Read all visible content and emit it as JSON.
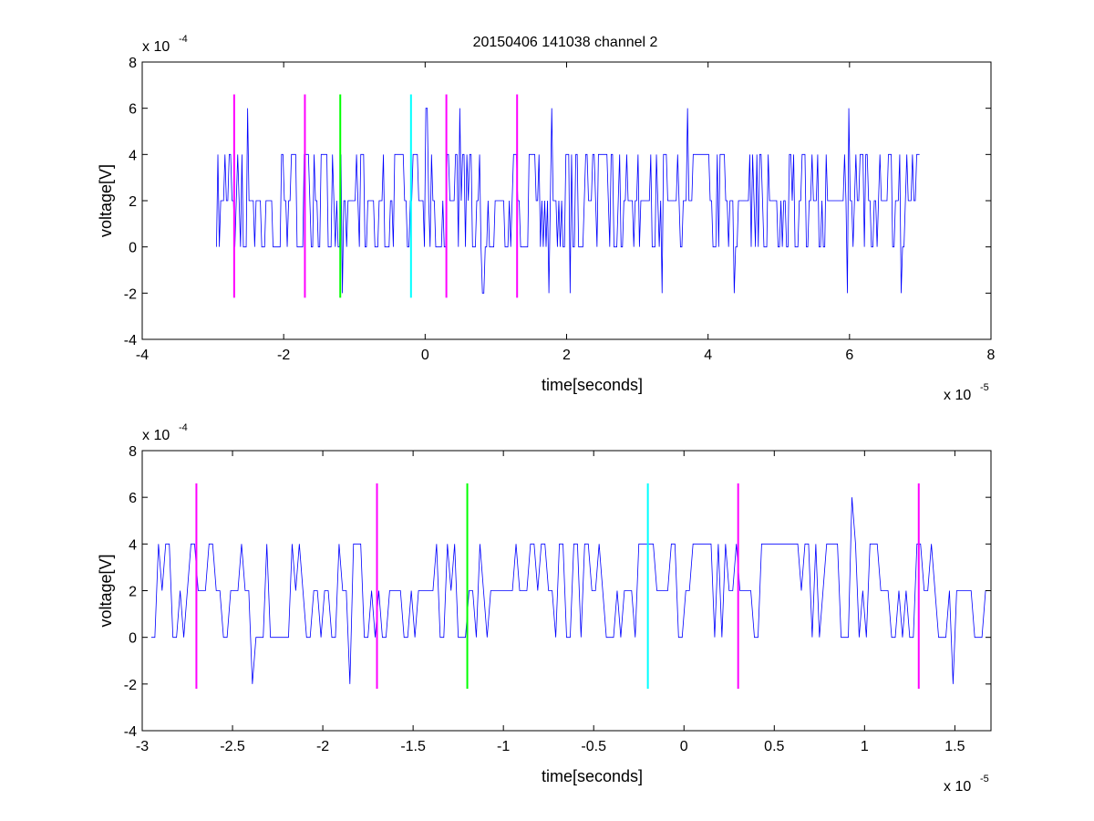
{
  "figure": {
    "title": "20150406 141038 channel 2"
  },
  "chart_data": [
    {
      "type": "line",
      "title": "20150406 141038 channel 2",
      "xlabel": "time[seconds]",
      "ylabel": "voltage[V]",
      "x_exponent_label": "x 10",
      "x_exponent": "-5",
      "y_exponent_label": "x 10",
      "y_exponent": "-4",
      "xlim": [
        -4,
        8
      ],
      "ylim": [
        -4,
        8
      ],
      "xticks": [
        -4,
        -2,
        0,
        2,
        4,
        6,
        8
      ],
      "yticks": [
        -4,
        -2,
        0,
        2,
        4,
        6,
        8
      ],
      "xtick_labels": [
        "-4",
        "-2",
        "0",
        "2",
        "4",
        "6",
        "8"
      ],
      "ytick_labels": [
        "-4",
        "-2",
        "0",
        "2",
        "4",
        "6",
        "8"
      ],
      "grid": false,
      "series_color": "#0000ff",
      "signal": {
        "x_start": -2.95,
        "x_end": 7.0,
        "step": 0.02,
        "levels": [
          0,
          2,
          4
        ],
        "rare_levels": [
          -2,
          6
        ],
        "description_levels_rare_fraction": 0.03
      },
      "markers": [
        {
          "x": -2.7,
          "y_range": [
            -2.2,
            6.6
          ],
          "color": "#ff00ff"
        },
        {
          "x": -1.7,
          "y_range": [
            -2.2,
            6.6
          ],
          "color": "#ff00ff"
        },
        {
          "x": -1.2,
          "y_range": [
            -2.2,
            6.6
          ],
          "color": "#00ff00"
        },
        {
          "x": -0.2,
          "y_range": [
            -2.2,
            6.6
          ],
          "color": "#00ffff"
        },
        {
          "x": 0.3,
          "y_range": [
            -2.2,
            6.6
          ],
          "color": "#ff00ff"
        },
        {
          "x": 1.3,
          "y_range": [
            -2.2,
            6.6
          ],
          "color": "#ff00ff"
        }
      ]
    },
    {
      "type": "line",
      "title": "",
      "xlabel": "time[seconds]",
      "ylabel": "voltage[V]",
      "x_exponent_label": "x 10",
      "x_exponent": "-5",
      "y_exponent_label": "x 10",
      "y_exponent": "-4",
      "xlim": [
        -3.0,
        1.7
      ],
      "ylim": [
        -4,
        8
      ],
      "xticks": [
        -3,
        -2.5,
        -2,
        -1.5,
        -1,
        -0.5,
        0,
        0.5,
        1,
        1.5
      ],
      "yticks": [
        -4,
        -2,
        0,
        2,
        4,
        6,
        8
      ],
      "xtick_labels": [
        "-3",
        "-2.5",
        "-2",
        "-1.5",
        "-1",
        "-0.5",
        "0",
        "0.5",
        "1",
        "1.5"
      ],
      "ytick_labels": [
        "-4",
        "-2",
        "0",
        "2",
        "4",
        "6",
        "8"
      ],
      "grid": false,
      "series_color": "#0000ff",
      "signal": {
        "x_start": -2.95,
        "x_end": 1.7,
        "step": 0.02,
        "levels": [
          0,
          2,
          4
        ],
        "rare_levels": [
          -2,
          6
        ],
        "description_levels_rare_fraction": 0.03
      },
      "markers": [
        {
          "x": -2.7,
          "y_range": [
            -2.2,
            6.6
          ],
          "color": "#ff00ff"
        },
        {
          "x": -1.7,
          "y_range": [
            -2.2,
            6.6
          ],
          "color": "#ff00ff"
        },
        {
          "x": -1.2,
          "y_range": [
            -2.2,
            6.6
          ],
          "color": "#00ff00"
        },
        {
          "x": -0.2,
          "y_range": [
            -2.2,
            6.6
          ],
          "color": "#00ffff"
        },
        {
          "x": 0.3,
          "y_range": [
            -2.2,
            6.6
          ],
          "color": "#ff00ff"
        },
        {
          "x": 1.3,
          "y_range": [
            -2.2,
            6.6
          ],
          "color": "#ff00ff"
        }
      ]
    }
  ]
}
